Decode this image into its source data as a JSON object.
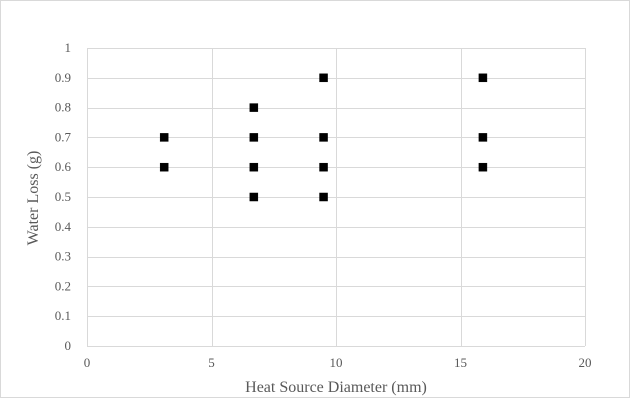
{
  "chart_data": {
    "type": "scatter",
    "title": "",
    "xlabel": "Heat Source Diameter (mm)",
    "ylabel": "Water Loss (g)",
    "xlim": [
      0,
      20
    ],
    "ylim": [
      0,
      1
    ],
    "x_ticks": [
      "0",
      "5",
      "10",
      "15",
      "20"
    ],
    "y_ticks": [
      "0",
      "0.1",
      "0.2",
      "0.3",
      "0.4",
      "0.5",
      "0.6",
      "0.7",
      "0.8",
      "0.9",
      "1"
    ],
    "grid": true,
    "legend": "none",
    "marker": "square",
    "marker_color": "#000000",
    "gridline_color": "#d9d9d9",
    "series": [
      {
        "points": [
          {
            "x": 3.1,
            "y": 0.7
          },
          {
            "x": 3.1,
            "y": 0.6
          },
          {
            "x": 6.7,
            "y": 0.8
          },
          {
            "x": 6.7,
            "y": 0.7
          },
          {
            "x": 6.7,
            "y": 0.6
          },
          {
            "x": 6.7,
            "y": 0.5
          },
          {
            "x": 9.5,
            "y": 0.9
          },
          {
            "x": 9.5,
            "y": 0.7
          },
          {
            "x": 9.5,
            "y": 0.6
          },
          {
            "x": 9.5,
            "y": 0.5
          },
          {
            "x": 15.9,
            "y": 0.9
          },
          {
            "x": 15.9,
            "y": 0.7
          },
          {
            "x": 15.9,
            "y": 0.6
          }
        ]
      }
    ]
  }
}
